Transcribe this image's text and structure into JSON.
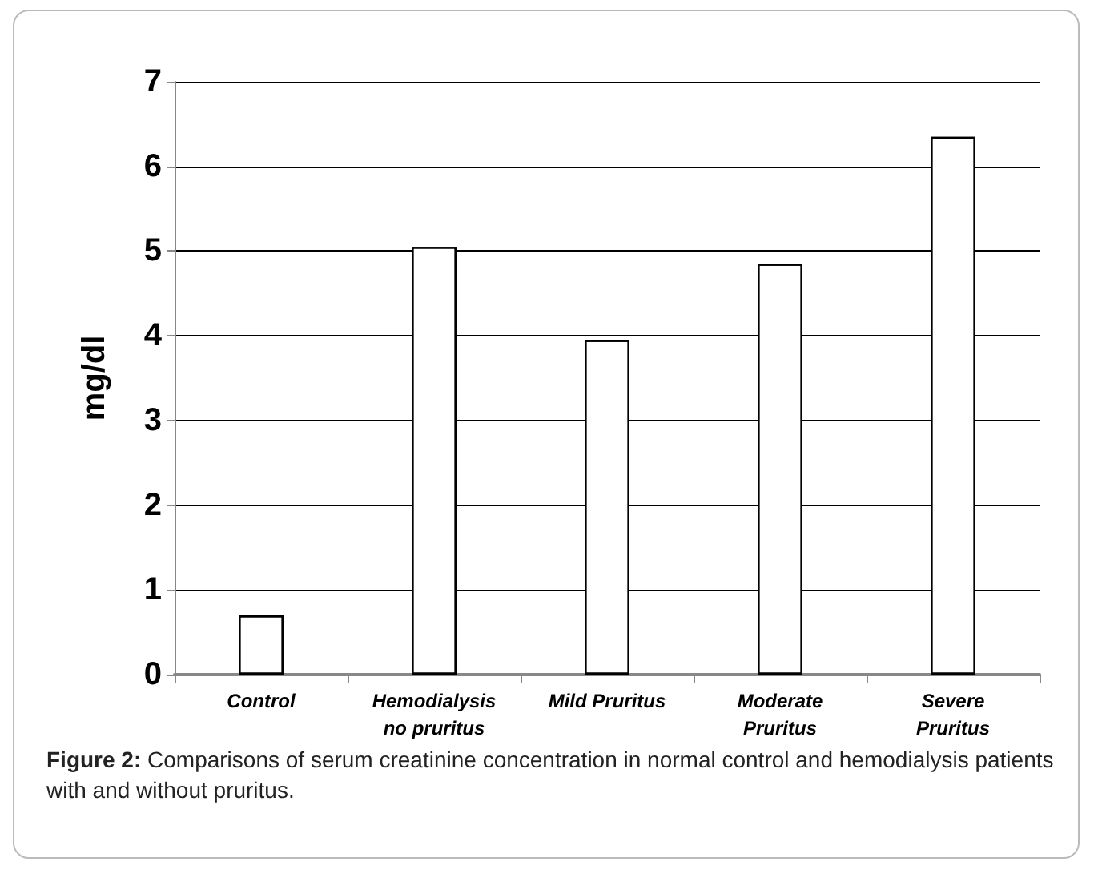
{
  "chart_data": {
    "type": "bar",
    "ylabel": "mg/dl",
    "categories": [
      "Control",
      "Hemodialysis\nno pruritus",
      "Mild Pruritus",
      "Moderate\nPruritus",
      "Severe\nPruritus"
    ],
    "values": [
      0.7,
      5.05,
      3.95,
      4.85,
      6.35
    ],
    "color": "#ffffff",
    "ylim": [
      0,
      7
    ],
    "yticks": [
      0,
      1,
      2,
      3,
      4,
      5,
      6,
      7
    ],
    "grid": "y",
    "annotations": [
      "Figure 2: Comparisons of serum creatinine concentration in normal control and hemodialysis patients with and without pruritus."
    ]
  }
}
